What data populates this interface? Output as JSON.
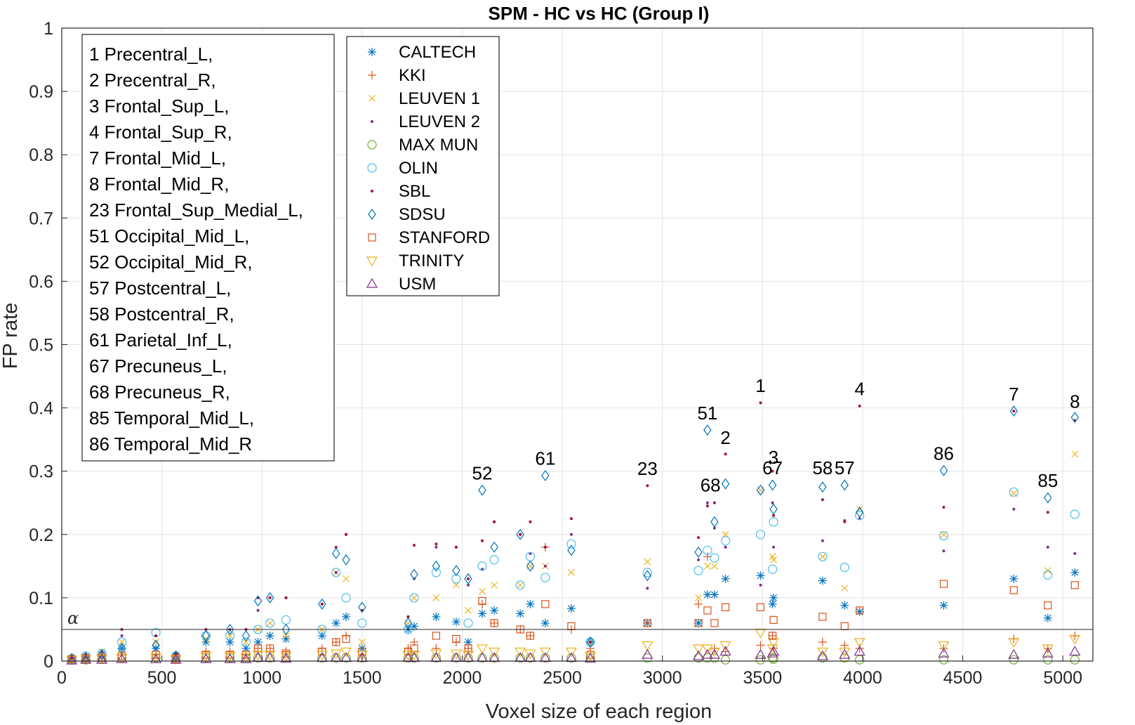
{
  "chart_data": {
    "type": "scatter",
    "title": "SPM - HC vs HC (Group I)",
    "xlabel": "Voxel size of each region",
    "ylabel": "FP rate",
    "xlim": [
      0,
      5150
    ],
    "ylim": [
      0,
      1
    ],
    "xticks": [
      0,
      500,
      1000,
      1500,
      2000,
      2500,
      3000,
      3500,
      4000,
      4500,
      5000
    ],
    "yticks": [
      0,
      0.1,
      0.2,
      0.3,
      0.4,
      0.5,
      0.6,
      0.7,
      0.8,
      0.9,
      1
    ],
    "grid": true,
    "alpha_line": {
      "label": "α",
      "value": 0.05
    },
    "colors": {
      "blue": "#0072BD",
      "orange": "#D95319",
      "yellow": "#EDB120",
      "purple": "#7E2F8E",
      "green": "#77AC30",
      "lightblue": "#4DBEEE",
      "darkred": "#A2142F"
    },
    "series": [
      {
        "name": "CALTECH",
        "marker": "star",
        "color": "#0072BD"
      },
      {
        "name": "KKI",
        "marker": "plus",
        "color": "#D95319"
      },
      {
        "name": "LEUVEN 1",
        "marker": "x",
        "color": "#EDB120"
      },
      {
        "name": "LEUVEN 2",
        "marker": "dot",
        "color": "#7E2F8E"
      },
      {
        "name": "MAX MUN",
        "marker": "circle",
        "color": "#77AC30"
      },
      {
        "name": "OLIN",
        "marker": "circle",
        "color": "#4DBEEE"
      },
      {
        "name": "SBL",
        "marker": "dot",
        "color": "#A2142F"
      },
      {
        "name": "SDSU",
        "marker": "diamond",
        "color": "#0072BD"
      },
      {
        "name": "STANFORD",
        "marker": "square",
        "color": "#D95319"
      },
      {
        "name": "TRINITY",
        "marker": "triangle-down",
        "color": "#EDB120"
      },
      {
        "name": "USM",
        "marker": "triangle-up",
        "color": "#7E2F8E"
      }
    ],
    "regions_legend": [
      "1 Precentral_L,",
      "2 Precentral_R,",
      "3 Frontal_Sup_L,",
      "4 Frontal_Sup_R,",
      "7 Frontal_Mid_L,",
      "8 Frontal_Mid_R,",
      "23 Frontal_Sup_Medial_L,",
      "51 Occipital_Mid_L,",
      "52 Occipital_Mid_R,",
      "57 Postcentral_L,",
      "58 Postcentral_R,",
      "61 Parietal_Inf_L,",
      "67 Precuneus_L,",
      "68 Precuneus_R,",
      "85 Temporal_Mid_L,",
      "86 Temporal_Mid_R"
    ],
    "annotations": [
      {
        "text": "1",
        "x": 3490,
        "y": 0.425
      },
      {
        "text": "2",
        "x": 3315,
        "y": 0.343
      },
      {
        "text": "3",
        "x": 3555,
        "y": 0.312
      },
      {
        "text": "4",
        "x": 3985,
        "y": 0.42
      },
      {
        "text": "7",
        "x": 4755,
        "y": 0.412
      },
      {
        "text": "8",
        "x": 5060,
        "y": 0.4
      },
      {
        "text": "23",
        "x": 2925,
        "y": 0.294
      },
      {
        "text": "51",
        "x": 3225,
        "y": 0.382
      },
      {
        "text": "52",
        "x": 2100,
        "y": 0.287
      },
      {
        "text": "57",
        "x": 3910,
        "y": 0.295
      },
      {
        "text": "58",
        "x": 3800,
        "y": 0.295
      },
      {
        "text": "61",
        "x": 2415,
        "y": 0.31
      },
      {
        "text": "67",
        "x": 3550,
        "y": 0.295
      },
      {
        "text": "68",
        "x": 3240,
        "y": 0.268
      },
      {
        "text": "85",
        "x": 4925,
        "y": 0.275
      },
      {
        "text": "86",
        "x": 4405,
        "y": 0.318
      }
    ],
    "regions": [
      {
        "x": 3490,
        "values": [
          0.135,
          0.025,
          0.27,
          0.12,
          0.002,
          0.2,
          0.408,
          0.27,
          0.085,
          0.045,
          0.01
        ]
      },
      {
        "x": 3315,
        "values": [
          0.13,
          0.015,
          0.2,
          0.18,
          0.002,
          0.19,
          0.327,
          0.28,
          0.085,
          0.025,
          0.015
        ]
      },
      {
        "x": 3555,
        "values": [
          0.1,
          0.02,
          0.16,
          0.18,
          0.003,
          0.22,
          0.23,
          0.24,
          0.065,
          0.03,
          0.015
        ]
      },
      {
        "x": 3985,
        "values": [
          0.078,
          0.02,
          0.24,
          0.225,
          0.002,
          0.23,
          0.403,
          0.235,
          0.08,
          0.03,
          0.015
        ]
      },
      {
        "x": 4755,
        "values": [
          0.13,
          0.035,
          0.265,
          0.24,
          0.002,
          0.267,
          0.395,
          0.395,
          0.112,
          0.03,
          0.01
        ]
      },
      {
        "x": 5060,
        "values": [
          0.14,
          0.04,
          0.327,
          0.17,
          0.002,
          0.232,
          0.38,
          0.385,
          0.12,
          0.035,
          0.015
        ]
      },
      {
        "x": 2925,
        "values": [
          0.06,
          0.06,
          0.157,
          0.115,
          0.005,
          0.14,
          0.277,
          0.135,
          0.06,
          0.025,
          0.01
        ]
      },
      {
        "x": 3225,
        "values": [
          0.105,
          0.165,
          0.15,
          0.25,
          0.005,
          0.175,
          0.245,
          0.365,
          0.08,
          0.02,
          0.01
        ]
      },
      {
        "x": 2100,
        "values": [
          0.075,
          0.09,
          0.11,
          0.145,
          0.005,
          0.15,
          0.19,
          0.27,
          0.095,
          0.02,
          0.005
        ]
      },
      {
        "x": 3910,
        "values": [
          0.088,
          0.025,
          0.115,
          0.222,
          0.005,
          0.148,
          0.22,
          0.278,
          0.055,
          0.015,
          0.01
        ]
      },
      {
        "x": 3800,
        "values": [
          0.127,
          0.03,
          0.165,
          0.19,
          0.005,
          0.165,
          0.255,
          0.275,
          0.07,
          0.015,
          0.008
        ]
      },
      {
        "x": 2415,
        "values": [
          0.06,
          0.18,
          0.15,
          0.15,
          0.005,
          0.132,
          0.18,
          0.293,
          0.09,
          0.015,
          0.005
        ]
      },
      {
        "x": 3550,
        "values": [
          0.09,
          0.04,
          0.165,
          0.25,
          0.005,
          0.145,
          0.3,
          0.278,
          0.04,
          0.02,
          0.012
        ]
      },
      {
        "x": 3260,
        "values": [
          0.105,
          0.02,
          0.15,
          0.21,
          0.005,
          0.163,
          0.25,
          0.22,
          0.06,
          0.015,
          0.01
        ]
      },
      {
        "x": 4925,
        "values": [
          0.068,
          0.02,
          0.143,
          0.18,
          0.002,
          0.136,
          0.235,
          0.258,
          0.088,
          0.02,
          0.012
        ]
      },
      {
        "x": 4405,
        "values": [
          0.088,
          0.02,
          0.2,
          0.174,
          0.002,
          0.198,
          0.243,
          0.301,
          0.122,
          0.025,
          0.012
        ]
      },
      {
        "x": 2290,
        "values": [
          0.075,
          0.05,
          0.12,
          0.2,
          0.005,
          0.12,
          0.2,
          0.2,
          0.05,
          0.015,
          0.005
        ]
      },
      {
        "x": 2160,
        "values": [
          0.08,
          0.06,
          0.12,
          0.22,
          0.005,
          0.16,
          0.22,
          0.18,
          0.06,
          0.015,
          0.005
        ]
      },
      {
        "x": 1420,
        "values": [
          0.07,
          0.04,
          0.13,
          0.2,
          0.005,
          0.1,
          0.2,
          0.16,
          0.035,
          0.015,
          0.005
        ]
      },
      {
        "x": 1370,
        "values": [
          0.06,
          0.03,
          0.14,
          0.14,
          0.005,
          0.14,
          0.18,
          0.17,
          0.03,
          0.012,
          0.005
        ]
      },
      {
        "x": 2545,
        "values": [
          0.083,
          0.05,
          0.14,
          0.2,
          0.005,
          0.185,
          0.225,
          0.175,
          0.055,
          0.015,
          0.005
        ]
      },
      {
        "x": 1870,
        "values": [
          0.07,
          0.02,
          0.1,
          0.18,
          0.005,
          0.14,
          0.185,
          0.15,
          0.04,
          0.012,
          0.005
        ]
      },
      {
        "x": 1970,
        "values": [
          0.062,
          0.03,
          0.12,
          0.18,
          0.005,
          0.13,
          0.18,
          0.143,
          0.035,
          0.012,
          0.005
        ]
      },
      {
        "x": 1760,
        "values": [
          0.055,
          0.03,
          0.1,
          0.13,
          0.005,
          0.1,
          0.183,
          0.137,
          0.02,
          0.01,
          0.005
        ]
      },
      {
        "x": 1040,
        "values": [
          0.04,
          0.02,
          0.06,
          0.1,
          0.005,
          0.06,
          0.1,
          0.1,
          0.02,
          0.01,
          0.005
        ]
      },
      {
        "x": 980,
        "values": [
          0.03,
          0.02,
          0.05,
          0.08,
          0.005,
          0.05,
          0.1,
          0.095,
          0.02,
          0.01,
          0.005
        ]
      },
      {
        "x": 2340,
        "values": [
          0.09,
          0.04,
          0.15,
          0.17,
          0.005,
          0.165,
          0.22,
          0.15,
          0.04,
          0.012,
          0.005
        ]
      },
      {
        "x": 1730,
        "values": [
          0.05,
          0.02,
          0.06,
          0.07,
          0.005,
          0.05,
          0.07,
          0.06,
          0.015,
          0.01,
          0.005
        ]
      },
      {
        "x": 1300,
        "values": [
          0.04,
          0.02,
          0.05,
          0.09,
          0.005,
          0.05,
          0.09,
          0.09,
          0.015,
          0.01,
          0.005
        ]
      },
      {
        "x": 840,
        "values": [
          0.03,
          0.015,
          0.04,
          0.05,
          0.005,
          0.04,
          0.05,
          0.05,
          0.01,
          0.008,
          0.003
        ]
      },
      {
        "x": 720,
        "values": [
          0.03,
          0.015,
          0.035,
          0.05,
          0.005,
          0.04,
          0.05,
          0.04,
          0.01,
          0.008,
          0.003
        ]
      },
      {
        "x": 1500,
        "values": [
          0.02,
          0.01,
          0.03,
          0.08,
          0.005,
          0.06,
          0.08,
          0.085,
          0.015,
          0.01,
          0.005
        ]
      },
      {
        "x": 1120,
        "values": [
          0.035,
          0.015,
          0.04,
          0.1,
          0.005,
          0.065,
          0.1,
          0.05,
          0.012,
          0.008,
          0.004
        ]
      },
      {
        "x": 2640,
        "values": [
          0.03,
          0.02,
          0.03,
          0.03,
          0.005,
          0.03,
          0.03,
          0.03,
          0.01,
          0.008,
          0.004
        ]
      },
      {
        "x": 470,
        "values": [
          0.02,
          0.01,
          0.03,
          0.04,
          0.005,
          0.045,
          0.04,
          0.025,
          0.01,
          0.006,
          0.003
        ]
      },
      {
        "x": 300,
        "values": [
          0.02,
          0.01,
          0.03,
          0.04,
          0.005,
          0.03,
          0.05,
          0.02,
          0.008,
          0.005,
          0.003
        ]
      },
      {
        "x": 200,
        "values": [
          0.01,
          0.005,
          0.015,
          0.015,
          0.003,
          0.012,
          0.015,
          0.01,
          0.005,
          0.004,
          0.002
        ]
      },
      {
        "x": 120,
        "values": [
          0.006,
          0.004,
          0.008,
          0.008,
          0.002,
          0.008,
          0.01,
          0.006,
          0.004,
          0.003,
          0.002
        ]
      },
      {
        "x": 50,
        "values": [
          0.004,
          0.003,
          0.005,
          0.005,
          0.002,
          0.004,
          0.005,
          0.004,
          0.003,
          0.002,
          0.001
        ]
      },
      {
        "x": 570,
        "values": [
          0.008,
          0.004,
          0.01,
          0.01,
          0.003,
          0.008,
          0.012,
          0.008,
          0.004,
          0.003,
          0.002
        ]
      },
      {
        "x": 920,
        "values": [
          0.02,
          0.01,
          0.03,
          0.05,
          0.004,
          0.03,
          0.05,
          0.04,
          0.01,
          0.006,
          0.003
        ]
      },
      {
        "x": 2030,
        "values": [
          0.03,
          0.02,
          0.08,
          0.12,
          0.005,
          0.06,
          0.13,
          0.13,
          0.02,
          0.01,
          0.005
        ]
      },
      {
        "x": 3180,
        "values": [
          0.06,
          0.09,
          0.1,
          0.16,
          0.005,
          0.143,
          0.195,
          0.172,
          0.06,
          0.02,
          0.008
        ]
      }
    ]
  }
}
